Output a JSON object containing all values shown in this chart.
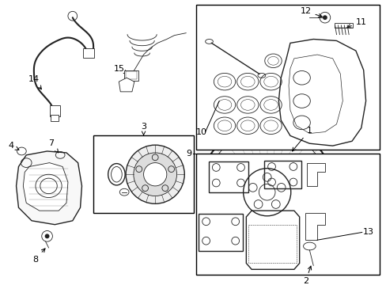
{
  "background_color": "#ffffff",
  "border_color": "#000000",
  "line_color": "#222222",
  "fig_width": 4.89,
  "fig_height": 3.6,
  "dpi": 100
}
